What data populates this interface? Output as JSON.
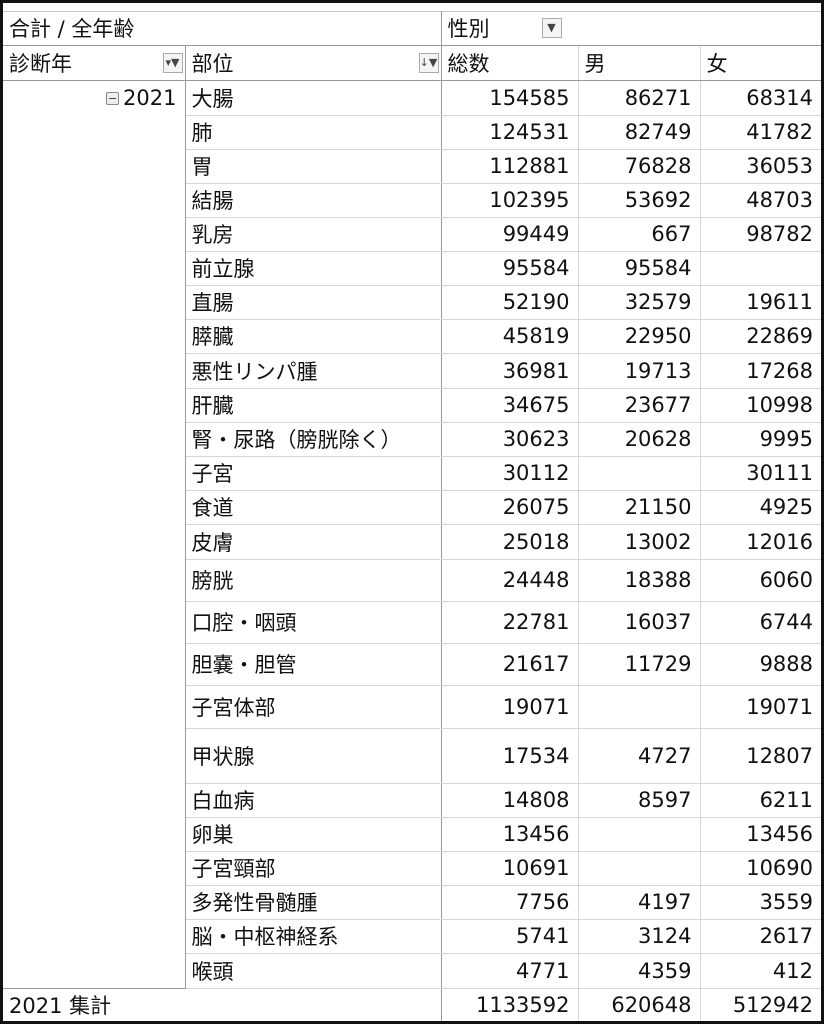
{
  "header": {
    "value_label": "合計 / 全年齢",
    "column_field": "性別",
    "row_field_1": "診断年",
    "row_field_2": "部位",
    "columns": [
      "総数",
      "男",
      "女"
    ]
  },
  "year": "2021",
  "rows": [
    {
      "site": "大腸",
      "total": "154585",
      "male": "86271",
      "female": "68314"
    },
    {
      "site": "肺",
      "total": "124531",
      "male": "82749",
      "female": "41782"
    },
    {
      "site": "胃",
      "total": "112881",
      "male": "76828",
      "female": "36053"
    },
    {
      "site": "結腸",
      "total": "102395",
      "male": "53692",
      "female": "48703"
    },
    {
      "site": "乳房",
      "total": "99449",
      "male": "667",
      "female": "98782"
    },
    {
      "site": "前立腺",
      "total": "95584",
      "male": "95584",
      "female": ""
    },
    {
      "site": "直腸",
      "total": "52190",
      "male": "32579",
      "female": "19611"
    },
    {
      "site": "膵臓",
      "total": "45819",
      "male": "22950",
      "female": "22869"
    },
    {
      "site": "悪性リンパ腫",
      "total": "36981",
      "male": "19713",
      "female": "17268"
    },
    {
      "site": "肝臓",
      "total": "34675",
      "male": "23677",
      "female": "10998"
    },
    {
      "site": "腎・尿路（膀胱除く）",
      "total": "30623",
      "male": "20628",
      "female": "9995"
    },
    {
      "site": "子宮",
      "total": "30112",
      "male": "",
      "female": "30111"
    },
    {
      "site": "食道",
      "total": "26075",
      "male": "21150",
      "female": "4925"
    },
    {
      "site": "皮膚",
      "total": "25018",
      "male": "13002",
      "female": "12016"
    },
    {
      "site": "膀胱",
      "total": "24448",
      "male": "18388",
      "female": "6060"
    },
    {
      "site": "口腔・咽頭",
      "total": "22781",
      "male": "16037",
      "female": "6744"
    },
    {
      "site": "胆嚢・胆管",
      "total": "21617",
      "male": "11729",
      "female": "9888"
    },
    {
      "site": "子宮体部",
      "total": "19071",
      "male": "",
      "female": "19071"
    },
    {
      "site": "甲状腺",
      "total": "17534",
      "male": "4727",
      "female": "12807"
    },
    {
      "site": "白血病",
      "total": "14808",
      "male": "8597",
      "female": "6211"
    },
    {
      "site": "卵巣",
      "total": "13456",
      "male": "",
      "female": "13456"
    },
    {
      "site": "子宮頸部",
      "total": "10691",
      "male": "",
      "female": "10690"
    },
    {
      "site": "多発性骨髄腫",
      "total": "7756",
      "male": "4197",
      "female": "3559"
    },
    {
      "site": "脳・中枢神経系",
      "total": "5741",
      "male": "3124",
      "female": "2617"
    },
    {
      "site": "喉頭",
      "total": "4771",
      "male": "4359",
      "female": "412"
    }
  ],
  "grand_total": {
    "label": "2021 集計",
    "total": "1133592",
    "male": "620648",
    "female": "512942"
  }
}
